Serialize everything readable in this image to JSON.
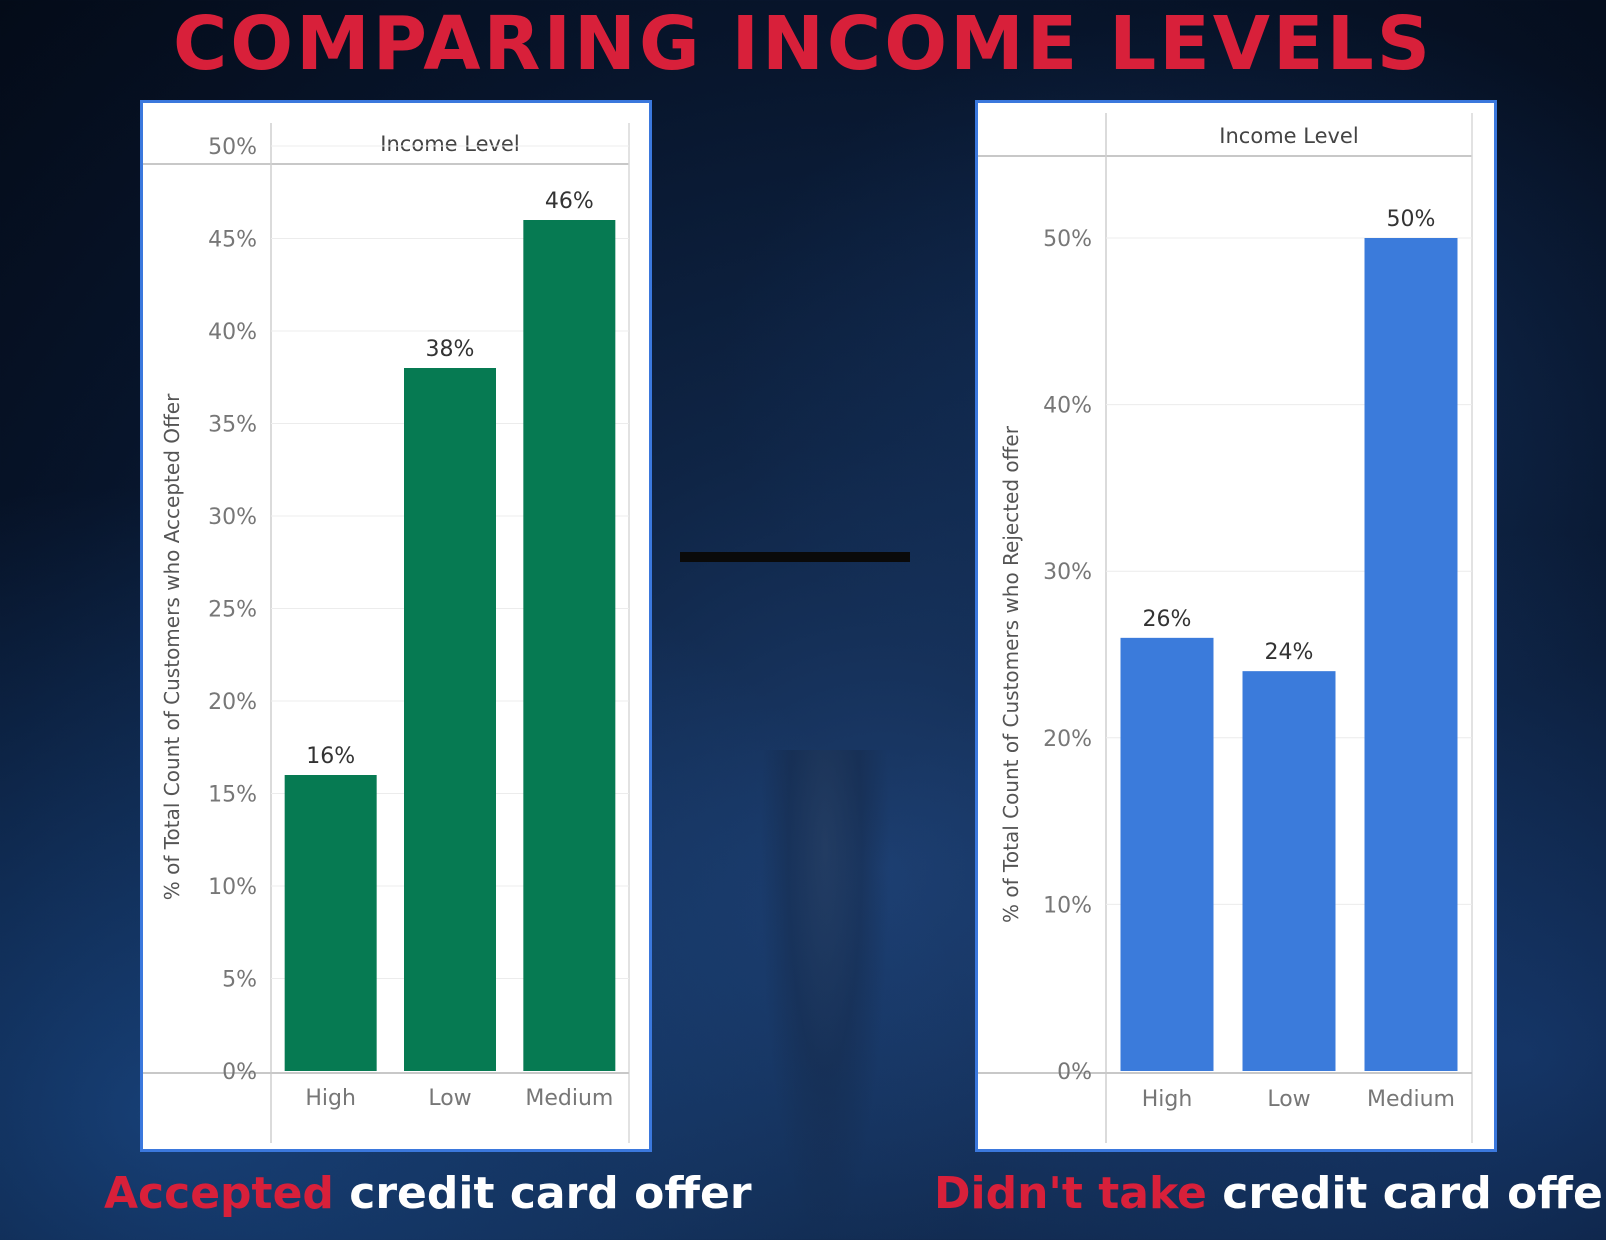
{
  "title": "COMPARING INCOME LEVELS",
  "captions": {
    "left": {
      "accent": "Accepted",
      "rest": "credit card offer"
    },
    "right": {
      "accent": "Didn't take",
      "rest": "credit card offer"
    }
  },
  "colors": {
    "title": "#d8203a",
    "accepted_bars": "#067a52",
    "rejected_bars": "#3b7bdb",
    "panel_border": "#3b78dd"
  },
  "chart_data": [
    {
      "type": "bar",
      "header": "Income Level",
      "ylabel": "% of Total Count of Customers who Accepted Offer",
      "categories": [
        "High",
        "Low",
        "Medium"
      ],
      "values": [
        16,
        38,
        46
      ],
      "value_labels": [
        "16%",
        "38%",
        "46%"
      ],
      "yticks": [
        0,
        5,
        10,
        15,
        20,
        25,
        30,
        35,
        40,
        45,
        50
      ],
      "ytick_labels": [
        "0%",
        "5%",
        "10%",
        "15%",
        "20%",
        "25%",
        "30%",
        "35%",
        "40%",
        "45%",
        "50%"
      ],
      "ylim": [
        0,
        48
      ],
      "grid": true,
      "color": "#067a52"
    },
    {
      "type": "bar",
      "header": "Income Level",
      "ylabel": "% of Total Count of Customers who  Rejected offer",
      "categories": [
        "High",
        "Low",
        "Medium"
      ],
      "values": [
        26,
        24,
        50
      ],
      "value_labels": [
        "26%",
        "24%",
        "50%"
      ],
      "yticks": [
        0,
        10,
        20,
        30,
        40,
        50
      ],
      "ytick_labels": [
        "0%",
        "10%",
        "20%",
        "30%",
        "40%",
        "50%"
      ],
      "ylim": [
        0,
        50
      ],
      "grid": true,
      "color": "#3b7bdb"
    }
  ]
}
